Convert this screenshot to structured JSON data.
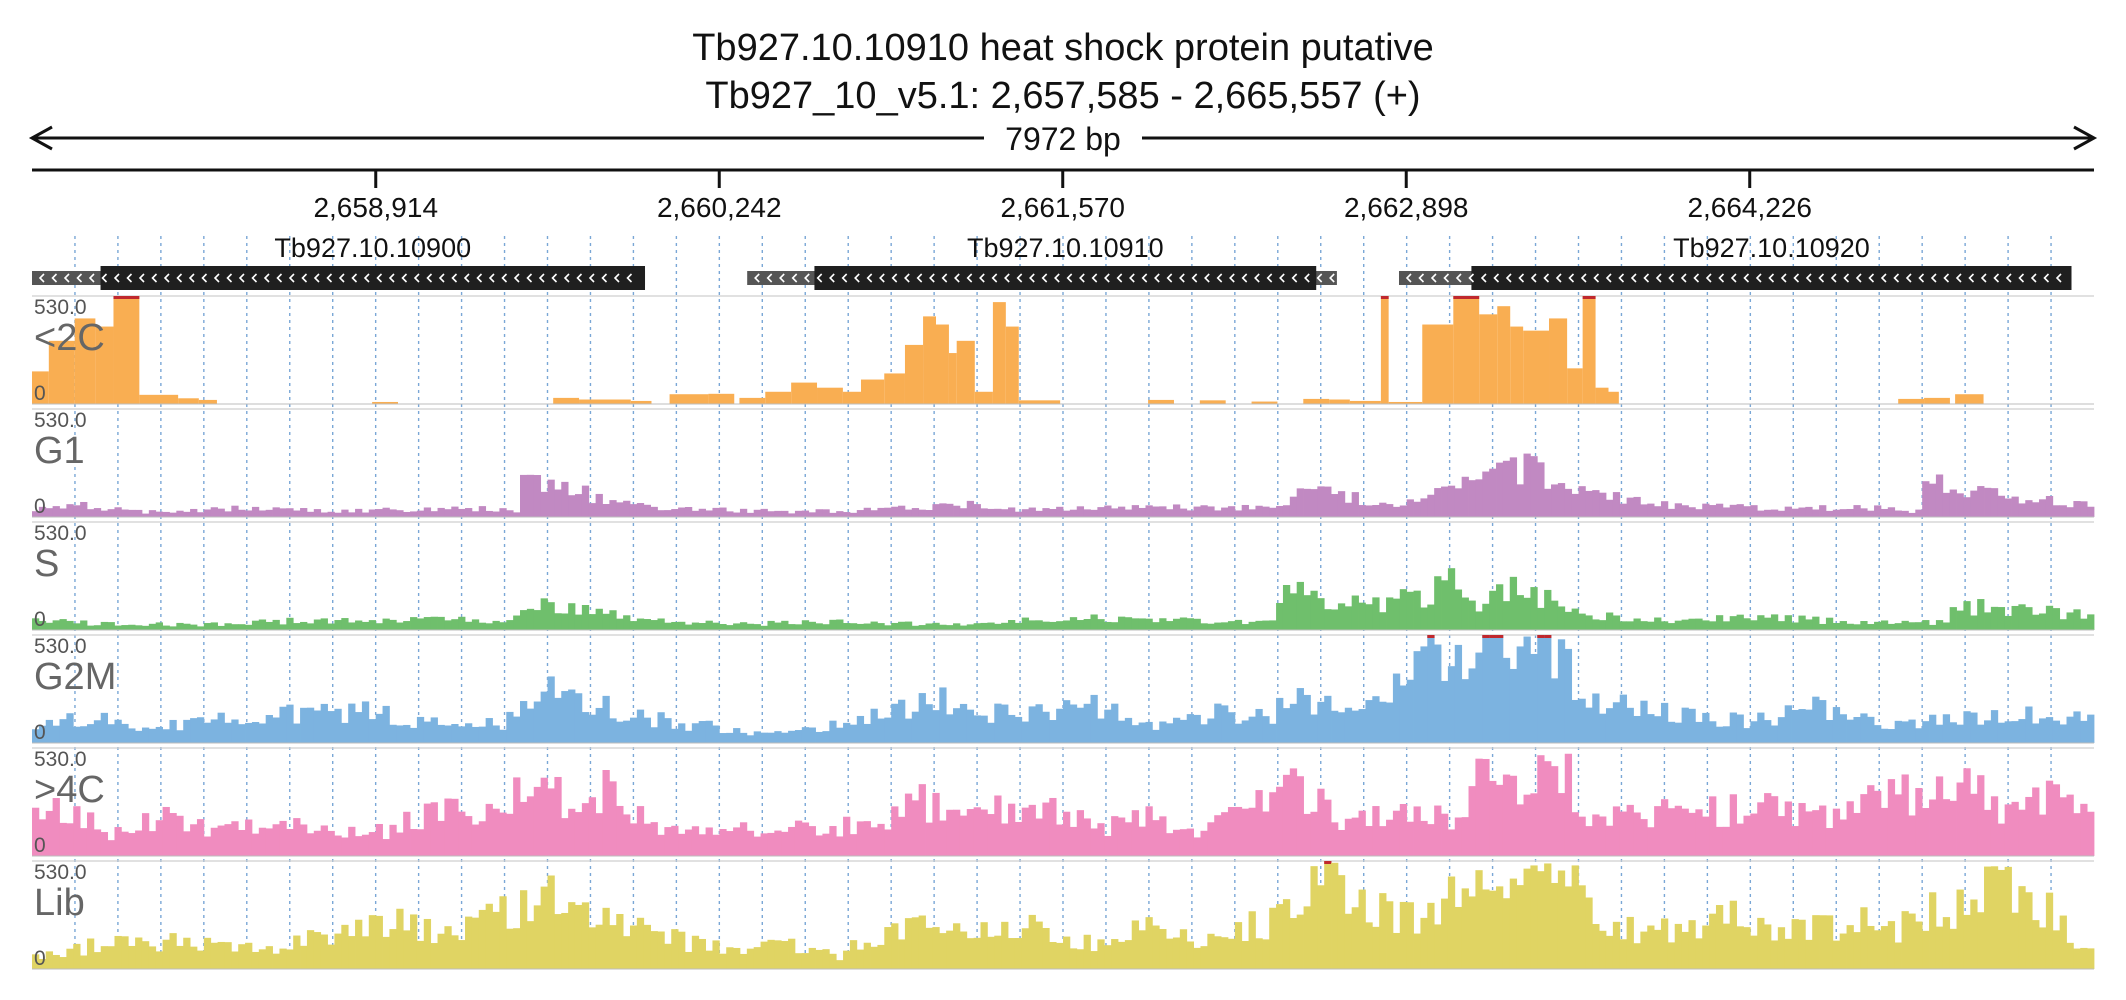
{
  "header": {
    "title": "Tb927.10.10910  heat shock protein  putative",
    "locus": "Tb927_10_v5.1: 2,657,585 - 2,665,557 (+)",
    "span": "7972 bp"
  },
  "colors": {
    "grid": "#7aa7d6",
    "gene_box": "#1f1f1f",
    "gene_utr": "#555555",
    "overflow": "#c0282d"
  },
  "chart_data": {
    "type": "bar",
    "x_range": [
      2657585,
      2665557
    ],
    "ticks": [
      {
        "value": 2658914,
        "label": "2,658,914"
      },
      {
        "value": 2660242,
        "label": "2,660,242"
      },
      {
        "value": 2661570,
        "label": "2,661,570"
      },
      {
        "value": 2662898,
        "label": "2,662,898"
      },
      {
        "value": 2664226,
        "label": "2,664,226"
      }
    ],
    "genes": [
      {
        "name": "Tb927.10.10900",
        "start": 2657585,
        "end": 2659955,
        "cds_start": 2657850,
        "cds_end": 2659955,
        "strand": "-"
      },
      {
        "name": "Tb927.10.10910",
        "start": 2660350,
        "end": 2662630,
        "cds_start": 2660610,
        "cds_end": 2662550,
        "strand": "-"
      },
      {
        "name": "Tb927.10.10920",
        "start": 2662870,
        "end": 2665470,
        "cds_start": 2663150,
        "cds_end": 2665470,
        "strand": "-"
      }
    ],
    "tracks": [
      {
        "name": "<2C",
        "max_label": "530.0",
        "min_label": "0",
        "ylim": [
          0,
          530
        ],
        "color": "#f9ae52",
        "bins": [
          [
            2657585,
            2657650,
            160
          ],
          [
            2657650,
            2657750,
            310
          ],
          [
            2657750,
            2657830,
            420
          ],
          [
            2657830,
            2657900,
            380
          ],
          [
            2657900,
            2658000,
            530
          ],
          [
            2658000,
            2658150,
            45
          ],
          [
            2658150,
            2658230,
            28
          ],
          [
            2658230,
            2658300,
            20
          ],
          [
            2658900,
            2659000,
            10
          ],
          [
            2659600,
            2659700,
            30
          ],
          [
            2659700,
            2659900,
            22
          ],
          [
            2659900,
            2659980,
            15
          ],
          [
            2660050,
            2660200,
            48
          ],
          [
            2660200,
            2660300,
            50
          ],
          [
            2660320,
            2660420,
            30
          ],
          [
            2660420,
            2660520,
            60
          ],
          [
            2660520,
            2660620,
            105
          ],
          [
            2660620,
            2660720,
            80
          ],
          [
            2660720,
            2660790,
            60
          ],
          [
            2660790,
            2660880,
            120
          ],
          [
            2660880,
            2660960,
            150
          ],
          [
            2660960,
            2661030,
            290
          ],
          [
            2661030,
            2661080,
            430
          ],
          [
            2661080,
            2661130,
            390
          ],
          [
            2661130,
            2661160,
            250
          ],
          [
            2661160,
            2661230,
            310
          ],
          [
            2661230,
            2661300,
            60
          ],
          [
            2661300,
            2661350,
            500
          ],
          [
            2661350,
            2661400,
            380
          ],
          [
            2661400,
            2661560,
            18
          ],
          [
            2661900,
            2662000,
            20
          ],
          [
            2662100,
            2662200,
            18
          ],
          [
            2662300,
            2662400,
            12
          ],
          [
            2662500,
            2662600,
            25
          ],
          [
            2662600,
            2662680,
            22
          ],
          [
            2662680,
            2662800,
            15
          ],
          [
            2662800,
            2662830,
            530
          ],
          [
            2662830,
            2662960,
            10
          ],
          [
            2662960,
            2663080,
            390
          ],
          [
            2663080,
            2663180,
            530
          ],
          [
            2663180,
            2663250,
            440
          ],
          [
            2663250,
            2663300,
            480
          ],
          [
            2663300,
            2663350,
            380
          ],
          [
            2663350,
            2663450,
            360
          ],
          [
            2663450,
            2663520,
            420
          ],
          [
            2663520,
            2663580,
            175
          ],
          [
            2663580,
            2663630,
            530
          ],
          [
            2663630,
            2663680,
            80
          ],
          [
            2663680,
            2663720,
            60
          ],
          [
            2664800,
            2664900,
            25
          ],
          [
            2664900,
            2665000,
            30
          ],
          [
            2665020,
            2665130,
            48
          ]
        ]
      },
      {
        "name": "G1",
        "max_label": "530.0",
        "min_label": "0",
        "ylim": [
          0,
          530
        ],
        "color": "#c189c2",
        "profile": [
          [
            2657585,
            40
          ],
          [
            2657800,
            55
          ],
          [
            2658000,
            25
          ],
          [
            2658400,
            42
          ],
          [
            2658800,
            30
          ],
          [
            2659300,
            40
          ],
          [
            2659460,
            35
          ],
          [
            2659480,
            150
          ],
          [
            2659600,
            165
          ],
          [
            2659700,
            120
          ],
          [
            2659900,
            60
          ],
          [
            2660200,
            40
          ],
          [
            2660500,
            25
          ],
          [
            2660900,
            35
          ],
          [
            2661200,
            70
          ],
          [
            2661400,
            35
          ],
          [
            2661800,
            55
          ],
          [
            2662200,
            40
          ],
          [
            2662450,
            50
          ],
          [
            2662460,
            150
          ],
          [
            2662600,
            110
          ],
          [
            2662900,
            60
          ],
          [
            2663000,
            150
          ],
          [
            2663200,
            180
          ],
          [
            2663300,
            260
          ],
          [
            2663450,
            210
          ],
          [
            2663600,
            110
          ],
          [
            2663900,
            60
          ],
          [
            2664200,
            50
          ],
          [
            2664700,
            45
          ],
          [
            2664880,
            30
          ],
          [
            2664900,
            175
          ],
          [
            2665100,
            130
          ],
          [
            2665300,
            90
          ],
          [
            2665557,
            70
          ]
        ]
      },
      {
        "name": "S",
        "max_label": "530.0",
        "min_label": "0",
        "ylim": [
          0,
          530
        ],
        "color": "#6fbf6c",
        "profile": [
          [
            2657585,
            45
          ],
          [
            2657800,
            35
          ],
          [
            2658200,
            25
          ],
          [
            2658600,
            45
          ],
          [
            2659200,
            50
          ],
          [
            2659450,
            40
          ],
          [
            2659480,
            150
          ],
          [
            2659650,
            120
          ],
          [
            2659900,
            55
          ],
          [
            2660300,
            30
          ],
          [
            2660800,
            40
          ],
          [
            2661200,
            25
          ],
          [
            2661600,
            60
          ],
          [
            2662000,
            50
          ],
          [
            2662400,
            40
          ],
          [
            2662420,
            190
          ],
          [
            2662600,
            150
          ],
          [
            2662800,
            130
          ],
          [
            2663000,
            180
          ],
          [
            2663100,
            240
          ],
          [
            2663200,
            120
          ],
          [
            2663300,
            200
          ],
          [
            2663450,
            160
          ],
          [
            2663600,
            70
          ],
          [
            2663900,
            45
          ],
          [
            2664300,
            60
          ],
          [
            2664700,
            35
          ],
          [
            2665000,
            40
          ],
          [
            2665020,
            120
          ],
          [
            2665300,
            95
          ],
          [
            2665557,
            70
          ]
        ]
      },
      {
        "name": "G2M",
        "max_label": "530.0",
        "min_label": "0",
        "ylim": [
          0,
          530
        ],
        "color": "#7cb3e0",
        "profile": [
          [
            2657585,
            70
          ],
          [
            2657850,
            150
          ],
          [
            2658000,
            80
          ],
          [
            2658300,
            110
          ],
          [
            2658600,
            140
          ],
          [
            2658900,
            150
          ],
          [
            2659100,
            110
          ],
          [
            2659400,
            90
          ],
          [
            2659480,
            230
          ],
          [
            2659650,
            260
          ],
          [
            2659900,
            140
          ],
          [
            2660200,
            80
          ],
          [
            2660500,
            40
          ],
          [
            2660800,
            120
          ],
          [
            2661100,
            200
          ],
          [
            2661400,
            130
          ],
          [
            2661700,
            180
          ],
          [
            2661900,
            80
          ],
          [
            2662150,
            150
          ],
          [
            2662350,
            130
          ],
          [
            2662500,
            220
          ],
          [
            2662750,
            150
          ],
          [
            2662880,
            300
          ],
          [
            2662960,
            450
          ],
          [
            2663050,
            340
          ],
          [
            2663150,
            530
          ],
          [
            2663400,
            530
          ],
          [
            2663550,
            330
          ],
          [
            2663650,
            200
          ],
          [
            2663900,
            150
          ],
          [
            2664200,
            110
          ],
          [
            2664500,
            170
          ],
          [
            2664800,
            100
          ],
          [
            2665050,
            130
          ],
          [
            2665250,
            160
          ],
          [
            2665557,
            100
          ]
        ]
      },
      {
        "name": ">4C",
        "max_label": "530.0",
        "min_label": "0",
        "ylim": [
          0,
          530
        ],
        "color": "#f08cbf",
        "profile": [
          [
            2657585,
            240
          ],
          [
            2657700,
            220
          ],
          [
            2657900,
            110
          ],
          [
            2658100,
            180
          ],
          [
            2658300,
            120
          ],
          [
            2658600,
            160
          ],
          [
            2658900,
            110
          ],
          [
            2659200,
            240
          ],
          [
            2659400,
            200
          ],
          [
            2659480,
            390
          ],
          [
            2659600,
            290
          ],
          [
            2659800,
            320
          ],
          [
            2660000,
            130
          ],
          [
            2660300,
            120
          ],
          [
            2660600,
            140
          ],
          [
            2660900,
            170
          ],
          [
            2661000,
            280
          ],
          [
            2661200,
            190
          ],
          [
            2661450,
            250
          ],
          [
            2661700,
            140
          ],
          [
            2661900,
            190
          ],
          [
            2662100,
            130
          ],
          [
            2662300,
            210
          ],
          [
            2662450,
            350
          ],
          [
            2662650,
            180
          ],
          [
            2662900,
            190
          ],
          [
            2663100,
            200
          ],
          [
            2663200,
            390
          ],
          [
            2663350,
            300
          ],
          [
            2663500,
            460
          ],
          [
            2663600,
            200
          ],
          [
            2663800,
            220
          ],
          [
            2664000,
            200
          ],
          [
            2664300,
            250
          ],
          [
            2664600,
            190
          ],
          [
            2664700,
            260
          ],
          [
            2664900,
            320
          ],
          [
            2665050,
            400
          ],
          [
            2665200,
            200
          ],
          [
            2665400,
            300
          ],
          [
            2665557,
            150
          ]
        ]
      },
      {
        "name": "Lib",
        "max_label": "530.0",
        "min_label": "0",
        "ylim": [
          0,
          530
        ],
        "color": "#e0d463",
        "profile": [
          [
            2657585,
            60
          ],
          [
            2657800,
            110
          ],
          [
            2658100,
            140
          ],
          [
            2658400,
            90
          ],
          [
            2658700,
            160
          ],
          [
            2659000,
            240
          ],
          [
            2659200,
            180
          ],
          [
            2659400,
            260
          ],
          [
            2659500,
            350
          ],
          [
            2659600,
            400
          ],
          [
            2659700,
            290
          ],
          [
            2659900,
            220
          ],
          [
            2660100,
            140
          ],
          [
            2660300,
            90
          ],
          [
            2660500,
            140
          ],
          [
            2660700,
            60
          ],
          [
            2660800,
            150
          ],
          [
            2661000,
            200
          ],
          [
            2661200,
            160
          ],
          [
            2661450,
            240
          ],
          [
            2661650,
            130
          ],
          [
            2661900,
            200
          ],
          [
            2662100,
            150
          ],
          [
            2662350,
            220
          ],
          [
            2662450,
            300
          ],
          [
            2662550,
            400
          ],
          [
            2662700,
            360
          ],
          [
            2662800,
            280
          ],
          [
            2662950,
            240
          ],
          [
            2663150,
            530
          ],
          [
            2663250,
            340
          ],
          [
            2663400,
            400
          ],
          [
            2663500,
            460
          ],
          [
            2663600,
            280
          ],
          [
            2663800,
            190
          ],
          [
            2664000,
            210
          ],
          [
            2664200,
            260
          ],
          [
            2664400,
            180
          ],
          [
            2664600,
            230
          ],
          [
            2664800,
            200
          ],
          [
            2664950,
            310
          ],
          [
            2665050,
            320
          ],
          [
            2665150,
            380
          ],
          [
            2665300,
            420
          ],
          [
            2665450,
            170
          ],
          [
            2665557,
            120
          ]
        ]
      }
    ]
  }
}
